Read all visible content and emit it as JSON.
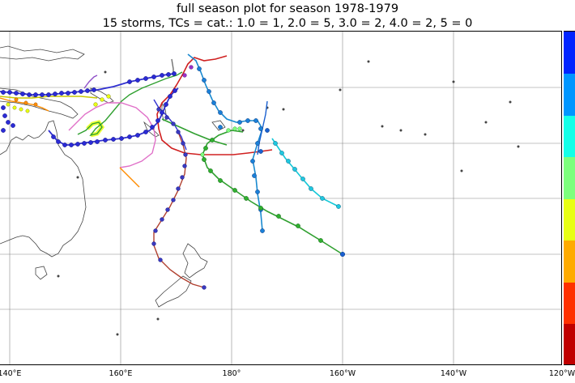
{
  "title_line1": "full season plot for season 1978-1979",
  "title_line2": "15 storms, TCs = cat.: 1.0 = 1, 2.0 = 5, 3.0 = 2, 4.0 = 2, 5 = 0",
  "lon_labels": [
    "140°E",
    "160°E",
    "180°",
    "160°W",
    "140°W",
    "120°W"
  ],
  "colorbar_colors": [
    "#0024ff",
    "#0096ff",
    "#14ffe8",
    "#7dff7d",
    "#e8ff14",
    "#ffab00",
    "#ff3100",
    "#c00000"
  ],
  "colors": {
    "land_outline": "#444444",
    "grid": "#888888"
  }
}
